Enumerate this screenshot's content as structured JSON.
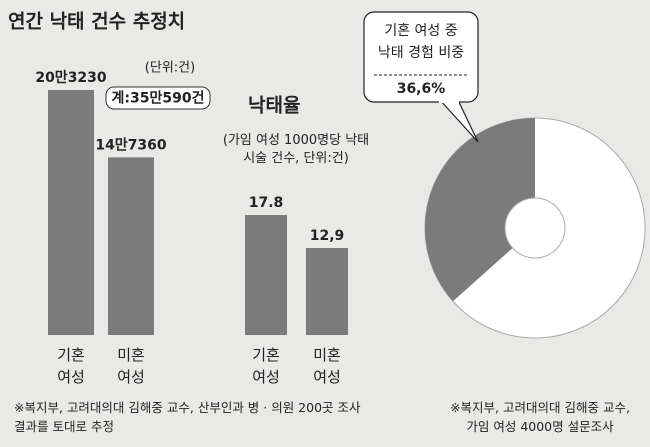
{
  "chart_data": [
    {
      "type": "bar",
      "title": "연간 낙태 건수 추정치",
      "unit": "(단위:건)",
      "total": "계:35만590건",
      "categories": [
        "기혼\n여성",
        "미혼\n여성"
      ],
      "values": [
        203230,
        147360
      ],
      "value_labels": [
        "20만3230",
        "14만7360"
      ],
      "color": "#7b7b7b",
      "note": "※복지부, 고려대의대 김해중 교수, 산부인과 병 · 의원 200곳 조사\n결과를 토대로 추정"
    },
    {
      "type": "bar",
      "title": "낙태율",
      "subtitle": "(가임 여성 1000명당 낙태\n시술 건수, 단위:건)",
      "categories": [
        "기혼\n여성",
        "미혼\n여성"
      ],
      "values": [
        17.8,
        12.9
      ],
      "value_labels": [
        "17.8",
        "12,9"
      ],
      "color": "#7b7b7b"
    },
    {
      "type": "pie",
      "title": "기혼 여성 중\n낙태 경험 비중",
      "values": [
        36.6
      ],
      "value_labels": [
        "36,6%"
      ],
      "colors": [
        "#7b7b7b"
      ],
      "note": "※복지부, 고려대의대 김해중 교수,\n가임 여성 4000명 설문조사"
    }
  ]
}
